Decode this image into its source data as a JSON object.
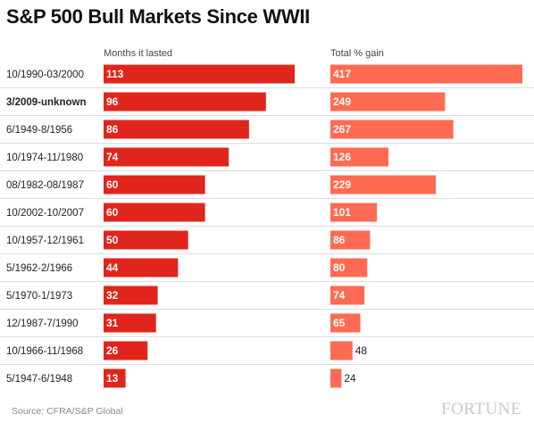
{
  "title": "S&P 500 Bull Markets Since WWII",
  "source": "Source: CFRA/S&P Global",
  "brand": "FORTUNE",
  "colors": {
    "months_bar": "#e0251c",
    "gain_bar": "#ff6a52",
    "divider": "#dddddd"
  },
  "chart_data": {
    "type": "bar",
    "orientation": "horizontal",
    "categories": [
      "10/1990-03/2000",
      "3/2009-unknown",
      "6/1949-8/1956",
      "10/1974-11/1980",
      "08/1982-08/1987",
      "10/2002-10/2007",
      "10/1957-12/1961",
      "5/1962-2/1966",
      "5/1970-1/1973",
      "12/1987-7/1990",
      "10/1966-11/1968",
      "5/1947-6/1948"
    ],
    "highlighted_category": "3/2009-unknown",
    "series": [
      {
        "name": "Months it lasted",
        "values": [
          113,
          96,
          86,
          74,
          60,
          60,
          50,
          44,
          32,
          31,
          26,
          13
        ]
      },
      {
        "name": "Total % gain",
        "values": [
          417,
          249,
          267,
          126,
          229,
          101,
          86,
          80,
          74,
          65,
          48,
          24
        ]
      }
    ]
  }
}
